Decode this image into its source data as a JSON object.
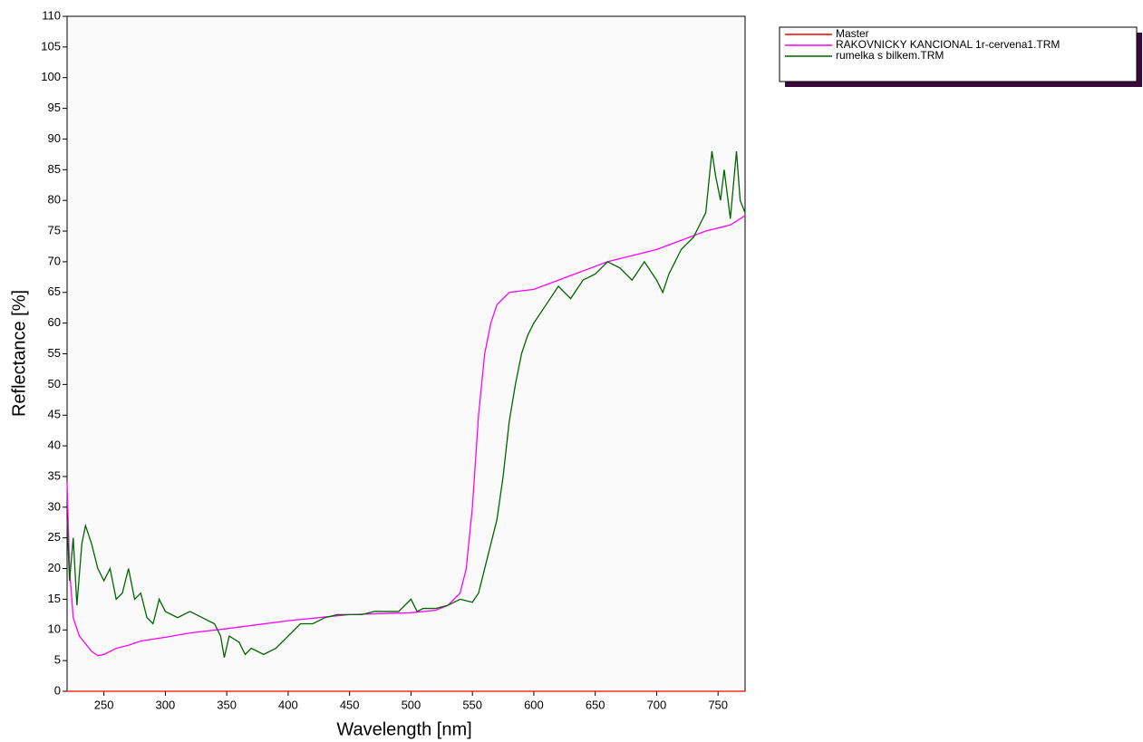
{
  "chart_data": {
    "type": "line",
    "xlabel": "Wavelength [nm]",
    "ylabel": "Reflectance [%]",
    "xlim": [
      220,
      772
    ],
    "xticks": [
      250,
      300,
      350,
      400,
      450,
      500,
      550,
      600,
      650,
      700,
      750
    ],
    "ylim": [
      0,
      110
    ],
    "yticks": [
      0,
      5,
      10,
      15,
      20,
      25,
      30,
      35,
      40,
      45,
      50,
      55,
      60,
      65,
      70,
      75,
      80,
      85,
      90,
      95,
      100,
      105,
      110
    ],
    "legend": "outside-top-right",
    "series": [
      {
        "name": "Master",
        "color": "#ff0000",
        "x": [
          220,
          772
        ],
        "values": [
          0,
          0
        ]
      },
      {
        "name": "RAKOVNICKY KANCIONAL 1r-cervena1.TRM",
        "color": "#ff00ff",
        "x": [
          220,
          222,
          225,
          230,
          240,
          245,
          250,
          260,
          270,
          280,
          300,
          320,
          350,
          400,
          450,
          500,
          520,
          530,
          540,
          545,
          550,
          555,
          560,
          565,
          570,
          580,
          600,
          620,
          640,
          660,
          680,
          700,
          720,
          740,
          760,
          772
        ],
        "values": [
          34,
          20,
          12,
          9,
          6.5,
          5.8,
          6,
          7,
          7.5,
          8.2,
          8.8,
          9.5,
          10.2,
          11.5,
          12.5,
          12.8,
          13.2,
          14,
          16,
          20,
          30,
          45,
          55,
          60,
          63,
          65,
          65.5,
          67,
          68.5,
          70,
          71,
          72,
          73.5,
          75,
          76,
          77.5
        ]
      },
      {
        "name": "rumelka s bilkem.TRM",
        "color": "#006400",
        "x": [
          220,
          222,
          225,
          228,
          232,
          235,
          240,
          245,
          250,
          255,
          260,
          265,
          270,
          275,
          280,
          285,
          290,
          295,
          300,
          310,
          320,
          330,
          340,
          345,
          348,
          352,
          360,
          365,
          370,
          380,
          390,
          400,
          410,
          420,
          430,
          440,
          450,
          460,
          470,
          480,
          490,
          500,
          505,
          510,
          520,
          530,
          540,
          550,
          555,
          560,
          570,
          575,
          580,
          585,
          590,
          595,
          600,
          610,
          620,
          630,
          640,
          650,
          660,
          670,
          680,
          690,
          700,
          705,
          710,
          720,
          730,
          740,
          745,
          748,
          752,
          755,
          760,
          765,
          768,
          772
        ],
        "values": [
          28,
          18,
          25,
          14,
          24,
          27,
          24,
          20,
          18,
          20,
          15,
          16,
          20,
          15,
          16,
          12,
          11,
          15,
          13,
          12,
          13,
          12,
          11,
          9,
          5.5,
          9,
          8,
          6,
          7,
          6,
          7,
          9,
          11,
          11,
          12,
          12.5,
          12.5,
          12.5,
          13,
          13,
          13,
          15,
          13,
          13.5,
          13.5,
          14,
          15,
          14.5,
          16,
          20,
          28,
          35,
          44,
          50,
          55,
          58,
          60,
          63,
          66,
          64,
          67,
          68,
          70,
          69,
          67,
          70,
          67,
          65,
          68,
          72,
          74,
          78,
          88,
          84,
          80,
          85,
          77,
          88,
          80,
          78
        ]
      }
    ]
  }
}
